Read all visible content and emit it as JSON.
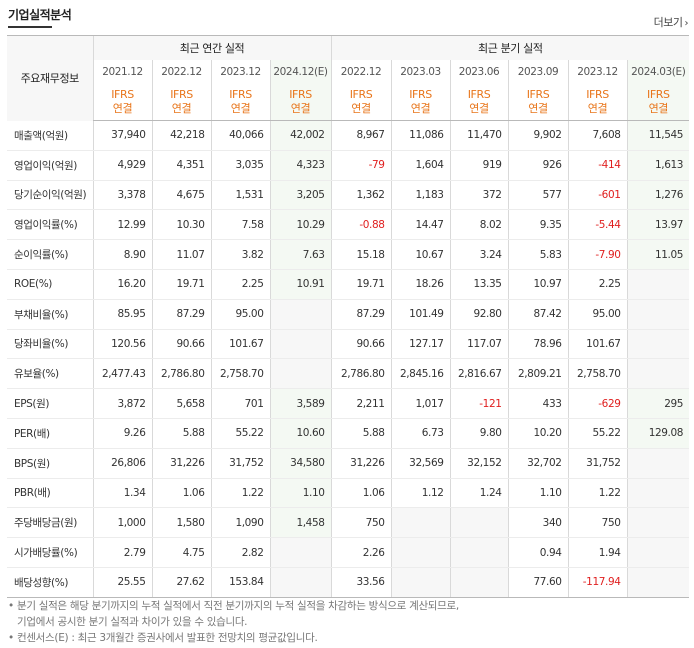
{
  "header": {
    "title": "기업실적분석",
    "more_label": "더보기"
  },
  "table": {
    "corner_label": "주요재무정보",
    "group_annual": "최근 연간 실적",
    "group_quarter": "최근 분기 실적",
    "annual_periods": [
      "2021.12",
      "2022.12",
      "2023.12",
      "2024.12(E)"
    ],
    "quarter_periods": [
      "2022.12",
      "2023.03",
      "2023.06",
      "2023.09",
      "2023.12",
      "2024.03(E)"
    ],
    "std_top": "IFRS",
    "std_bottom": "연결",
    "rows": [
      {
        "label": "매출액(억원)",
        "values": [
          "37,940",
          "42,218",
          "40,066",
          "42,002",
          "8,967",
          "11,086",
          "11,470",
          "9,902",
          "7,608",
          "11,545"
        ]
      },
      {
        "label": "영업이익(억원)",
        "values": [
          "4,929",
          "4,351",
          "3,035",
          "4,323",
          "-79",
          "1,604",
          "919",
          "926",
          "-414",
          "1,613"
        ]
      },
      {
        "label": "당기순이익(억원)",
        "values": [
          "3,378",
          "4,675",
          "1,531",
          "3,205",
          "1,362",
          "1,183",
          "372",
          "577",
          "-601",
          "1,276"
        ]
      },
      {
        "label": "영업이익률(%)",
        "values": [
          "12.99",
          "10.30",
          "7.58",
          "10.29",
          "-0.88",
          "14.47",
          "8.02",
          "9.35",
          "-5.44",
          "13.97"
        ]
      },
      {
        "label": "순이익률(%)",
        "values": [
          "8.90",
          "11.07",
          "3.82",
          "7.63",
          "15.18",
          "10.67",
          "3.24",
          "5.83",
          "-7.90",
          "11.05"
        ]
      },
      {
        "label": "ROE(%)",
        "values": [
          "16.20",
          "19.71",
          "2.25",
          "10.91",
          "19.71",
          "18.26",
          "13.35",
          "10.97",
          "2.25",
          ""
        ]
      },
      {
        "label": "부채비율(%)",
        "values": [
          "85.95",
          "87.29",
          "95.00",
          "",
          "87.29",
          "101.49",
          "92.80",
          "87.42",
          "95.00",
          ""
        ]
      },
      {
        "label": "당좌비율(%)",
        "values": [
          "120.56",
          "90.66",
          "101.67",
          "",
          "90.66",
          "127.17",
          "117.07",
          "78.96",
          "101.67",
          ""
        ]
      },
      {
        "label": "유보율(%)",
        "values": [
          "2,477.43",
          "2,786.80",
          "2,758.70",
          "",
          "2,786.80",
          "2,845.16",
          "2,816.67",
          "2,809.21",
          "2,758.70",
          ""
        ]
      },
      {
        "label": "EPS(원)",
        "values": [
          "3,872",
          "5,658",
          "701",
          "3,589",
          "2,211",
          "1,017",
          "-121",
          "433",
          "-629",
          "295"
        ]
      },
      {
        "label": "PER(배)",
        "values": [
          "9.26",
          "5.88",
          "55.22",
          "10.60",
          "5.88",
          "6.73",
          "9.80",
          "10.20",
          "55.22",
          "129.08"
        ]
      },
      {
        "label": "BPS(원)",
        "values": [
          "26,806",
          "31,226",
          "31,752",
          "34,580",
          "31,226",
          "32,569",
          "32,152",
          "32,702",
          "31,752",
          ""
        ]
      },
      {
        "label": "PBR(배)",
        "values": [
          "1.34",
          "1.06",
          "1.22",
          "1.10",
          "1.06",
          "1.12",
          "1.24",
          "1.10",
          "1.22",
          ""
        ]
      },
      {
        "label": "주당배당금(원)",
        "values": [
          "1,000",
          "1,580",
          "1,090",
          "1,458",
          "750",
          "",
          "",
          "340",
          "750",
          ""
        ]
      },
      {
        "label": "시가배당률(%)",
        "values": [
          "2.79",
          "4.75",
          "2.82",
          "",
          "2.26",
          "",
          "",
          "0.94",
          "1.94",
          ""
        ]
      },
      {
        "label": "배당성향(%)",
        "values": [
          "25.55",
          "27.62",
          "153.84",
          "",
          "33.56",
          "",
          "",
          "77.60",
          "-117.94",
          ""
        ]
      }
    ]
  },
  "notes": [
    "분기 실적은 해당 분기까지의 누적 실적에서 직전 분기까지의 누적 실적을 차감하는 방식으로 계산되므로,",
    "기업에서 공시한 분기 실적과 차이가 있을 수 있습니다.",
    "컨센서스(E) : 최근 3개월간 증권사에서 발표한 전망치의 평균값입니다."
  ],
  "note_bullet": "•"
}
